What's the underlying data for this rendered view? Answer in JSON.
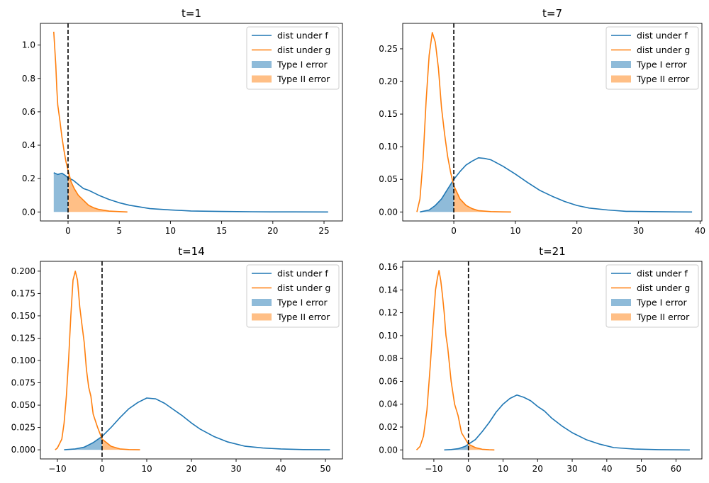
{
  "chart_data": [
    {
      "type": "line",
      "title": "t=1",
      "xlim": [
        -2.7,
        26.8
      ],
      "ylim": [
        -0.054,
        1.13
      ],
      "xticks": [
        0,
        5,
        10,
        15,
        20,
        25
      ],
      "yticks": [
        0.0,
        0.2,
        0.4,
        0.6,
        0.8,
        1.0
      ],
      "ytick_decimals": 1,
      "threshold_x": 0,
      "legend": {
        "position": "top-right",
        "entries": [
          {
            "label": "dist under f",
            "kind": "line",
            "color": "#1f77b4"
          },
          {
            "label": "dist under g",
            "kind": "line",
            "color": "#ff7f0e"
          },
          {
            "label": "Type I error",
            "kind": "patch",
            "color": "#1f77b4"
          },
          {
            "label": "Type II error",
            "kind": "patch",
            "color": "#ff7f0e"
          }
        ]
      },
      "series": [
        {
          "name": "dist under f",
          "color": "#1f77b4",
          "x": [
            -1.4,
            -1.0,
            -0.6,
            -0.3,
            0,
            0.5,
            1,
            1.5,
            2,
            3,
            4,
            5,
            6,
            7,
            8,
            10,
            12,
            15,
            18,
            20,
            22,
            25.4
          ],
          "y": [
            0.235,
            0.225,
            0.232,
            0.22,
            0.205,
            0.19,
            0.165,
            0.14,
            0.13,
            0.1,
            0.075,
            0.055,
            0.04,
            0.03,
            0.02,
            0.012,
            0.006,
            0.003,
            0.001,
            0.0005,
            0.0002,
            0.0
          ]
        },
        {
          "name": "dist under g",
          "color": "#ff7f0e",
          "x": [
            -1.4,
            -1.2,
            -1.1,
            -1.0,
            -0.8,
            -0.6,
            -0.4,
            -0.2,
            0,
            0.3,
            0.6,
            1,
            1.5,
            2,
            2.5,
            3,
            4,
            5,
            5.8
          ],
          "y": [
            1.08,
            0.88,
            0.74,
            0.64,
            0.55,
            0.45,
            0.37,
            0.3,
            0.25,
            0.18,
            0.14,
            0.1,
            0.07,
            0.04,
            0.025,
            0.015,
            0.005,
            0.002,
            0.0
          ]
        }
      ],
      "shade": [
        {
          "name": "Type I error",
          "series": 0,
          "side": "left",
          "color": "#1f77b4"
        },
        {
          "name": "Type II error",
          "series": 1,
          "side": "right",
          "color": "#ff7f0e"
        }
      ]
    },
    {
      "type": "line",
      "title": "t=7",
      "xlim": [
        -8.3,
        40.3
      ],
      "ylim": [
        -0.0138,
        0.289
      ],
      "xticks": [
        0,
        10,
        20,
        30,
        40
      ],
      "yticks": [
        0.0,
        0.05,
        0.1,
        0.15,
        0.2,
        0.25
      ],
      "ytick_decimals": 2,
      "threshold_x": 0,
      "legend": {
        "position": "top-right",
        "entries": [
          {
            "label": "dist under f",
            "kind": "line",
            "color": "#1f77b4"
          },
          {
            "label": "dist under g",
            "kind": "line",
            "color": "#ff7f0e"
          },
          {
            "label": "Type I error",
            "kind": "patch",
            "color": "#1f77b4"
          },
          {
            "label": "Type II error",
            "kind": "patch",
            "color": "#ff7f0e"
          }
        ]
      },
      "series": [
        {
          "name": "dist under f",
          "color": "#1f77b4",
          "x": [
            -5.5,
            -4,
            -3,
            -2,
            -1,
            0,
            1,
            2,
            3,
            4,
            5,
            6,
            7,
            8,
            10,
            12,
            14,
            16,
            18,
            20,
            22,
            25,
            28,
            32,
            36,
            38.7
          ],
          "y": [
            0.0,
            0.003,
            0.01,
            0.02,
            0.035,
            0.05,
            0.062,
            0.072,
            0.078,
            0.083,
            0.082,
            0.08,
            0.075,
            0.07,
            0.058,
            0.045,
            0.033,
            0.024,
            0.016,
            0.01,
            0.006,
            0.003,
            0.001,
            0.0005,
            0.0001,
            0.0
          ]
        },
        {
          "name": "dist under g",
          "color": "#ff7f0e",
          "x": [
            -6.0,
            -5.5,
            -5,
            -4.5,
            -4,
            -3.5,
            -3,
            -2.5,
            -2,
            -1.5,
            -1,
            -0.5,
            0,
            1,
            2,
            3,
            4,
            6,
            8,
            9.3
          ],
          "y": [
            0.0,
            0.02,
            0.08,
            0.17,
            0.24,
            0.275,
            0.26,
            0.22,
            0.16,
            0.12,
            0.085,
            0.06,
            0.04,
            0.02,
            0.01,
            0.005,
            0.002,
            0.0005,
            0.0001,
            0.0
          ]
        }
      ],
      "shade": [
        {
          "name": "Type I error",
          "series": 0,
          "side": "left",
          "color": "#1f77b4"
        },
        {
          "name": "Type II error",
          "series": 1,
          "side": "right",
          "color": "#ff7f0e"
        }
      ]
    },
    {
      "type": "line",
      "title": "t=14",
      "xlim": [
        -13.8,
        53.8
      ],
      "ylim": [
        -0.0102,
        0.211
      ],
      "xticks": [
        -10,
        0,
        10,
        20,
        30,
        40,
        50
      ],
      "yticks": [
        0.0,
        0.025,
        0.05,
        0.075,
        0.1,
        0.125,
        0.15,
        0.175,
        0.2
      ],
      "ytick_decimals": 3,
      "threshold_x": 0,
      "legend": {
        "position": "top-right",
        "entries": [
          {
            "label": "dist under f",
            "kind": "line",
            "color": "#1f77b4"
          },
          {
            "label": "dist under g",
            "kind": "line",
            "color": "#ff7f0e"
          },
          {
            "label": "Type I error",
            "kind": "patch",
            "color": "#1f77b4"
          },
          {
            "label": "Type II error",
            "kind": "patch",
            "color": "#ff7f0e"
          }
        ]
      },
      "series": [
        {
          "name": "dist under f",
          "color": "#1f77b4",
          "x": [
            -8.5,
            -6,
            -4,
            -2,
            0,
            2,
            4,
            6,
            8,
            10,
            12,
            14,
            16,
            18,
            20,
            22,
            25,
            28,
            32,
            36,
            40,
            45,
            51
          ],
          "y": [
            0.0,
            0.001,
            0.003,
            0.008,
            0.015,
            0.025,
            0.036,
            0.046,
            0.053,
            0.058,
            0.057,
            0.052,
            0.045,
            0.038,
            0.03,
            0.023,
            0.015,
            0.009,
            0.004,
            0.002,
            0.001,
            0.0003,
            0.0
          ]
        },
        {
          "name": "dist under g",
          "color": "#ff7f0e",
          "x": [
            -10.5,
            -10,
            -9,
            -8.5,
            -8,
            -7.5,
            -7,
            -6.5,
            -6,
            -5.5,
            -5,
            -4.5,
            -4,
            -3.5,
            -3,
            -2.5,
            -2,
            -1,
            0,
            2,
            4,
            6,
            8.5
          ],
          "y": [
            0.0,
            0.002,
            0.012,
            0.03,
            0.06,
            0.1,
            0.15,
            0.19,
            0.2,
            0.19,
            0.16,
            0.14,
            0.12,
            0.09,
            0.07,
            0.06,
            0.04,
            0.025,
            0.012,
            0.004,
            0.001,
            0.0003,
            0.0
          ]
        }
      ],
      "shade": [
        {
          "name": "Type I error",
          "series": 0,
          "side": "left",
          "color": "#1f77b4"
        },
        {
          "name": "Type II error",
          "series": 1,
          "side": "right",
          "color": "#ff7f0e"
        }
      ]
    },
    {
      "type": "line",
      "title": "t=21",
      "xlim": [
        -19.0,
        67.5
      ],
      "ylim": [
        -0.0079,
        0.165
      ],
      "xticks": [
        -10,
        0,
        10,
        20,
        30,
        40,
        50,
        60
      ],
      "yticks": [
        0.0,
        0.02,
        0.04,
        0.06,
        0.08,
        0.1,
        0.12,
        0.14,
        0.16
      ],
      "ytick_decimals": 2,
      "threshold_x": 0,
      "legend": {
        "position": "top-right",
        "entries": [
          {
            "label": "dist under f",
            "kind": "line",
            "color": "#1f77b4"
          },
          {
            "label": "dist under g",
            "kind": "line",
            "color": "#ff7f0e"
          },
          {
            "label": "Type I error",
            "kind": "patch",
            "color": "#1f77b4"
          },
          {
            "label": "Type II error",
            "kind": "patch",
            "color": "#ff7f0e"
          }
        ]
      },
      "series": [
        {
          "name": "dist under f",
          "color": "#1f77b4",
          "x": [
            -7,
            -5,
            -3,
            -1,
            0,
            2,
            4,
            6,
            8,
            10,
            12,
            14,
            16,
            18,
            20,
            22,
            24,
            27,
            30,
            34,
            38,
            42,
            48,
            55,
            64
          ],
          "y": [
            0.0,
            0.0003,
            0.001,
            0.003,
            0.005,
            0.009,
            0.016,
            0.024,
            0.033,
            0.04,
            0.045,
            0.048,
            0.046,
            0.043,
            0.038,
            0.034,
            0.028,
            0.021,
            0.015,
            0.009,
            0.005,
            0.002,
            0.0007,
            0.0002,
            0.0
          ]
        },
        {
          "name": "dist under g",
          "color": "#ff7f0e",
          "x": [
            -15,
            -14,
            -13,
            -12,
            -11,
            -10,
            -9.5,
            -9,
            -8.5,
            -8,
            -7.5,
            -7,
            -6.5,
            -6,
            -5,
            -4,
            -3,
            -2,
            0,
            2,
            4,
            6,
            7.5
          ],
          "y": [
            0.0,
            0.003,
            0.012,
            0.035,
            0.075,
            0.12,
            0.14,
            0.15,
            0.157,
            0.148,
            0.135,
            0.12,
            0.1,
            0.09,
            0.06,
            0.04,
            0.03,
            0.015,
            0.005,
            0.002,
            0.0005,
            0.0001,
            0.0
          ]
        }
      ],
      "shade": [
        {
          "name": "Type I error",
          "series": 0,
          "side": "left",
          "color": "#1f77b4"
        },
        {
          "name": "Type II error",
          "series": 1,
          "side": "right",
          "color": "#ff7f0e"
        }
      ]
    }
  ]
}
